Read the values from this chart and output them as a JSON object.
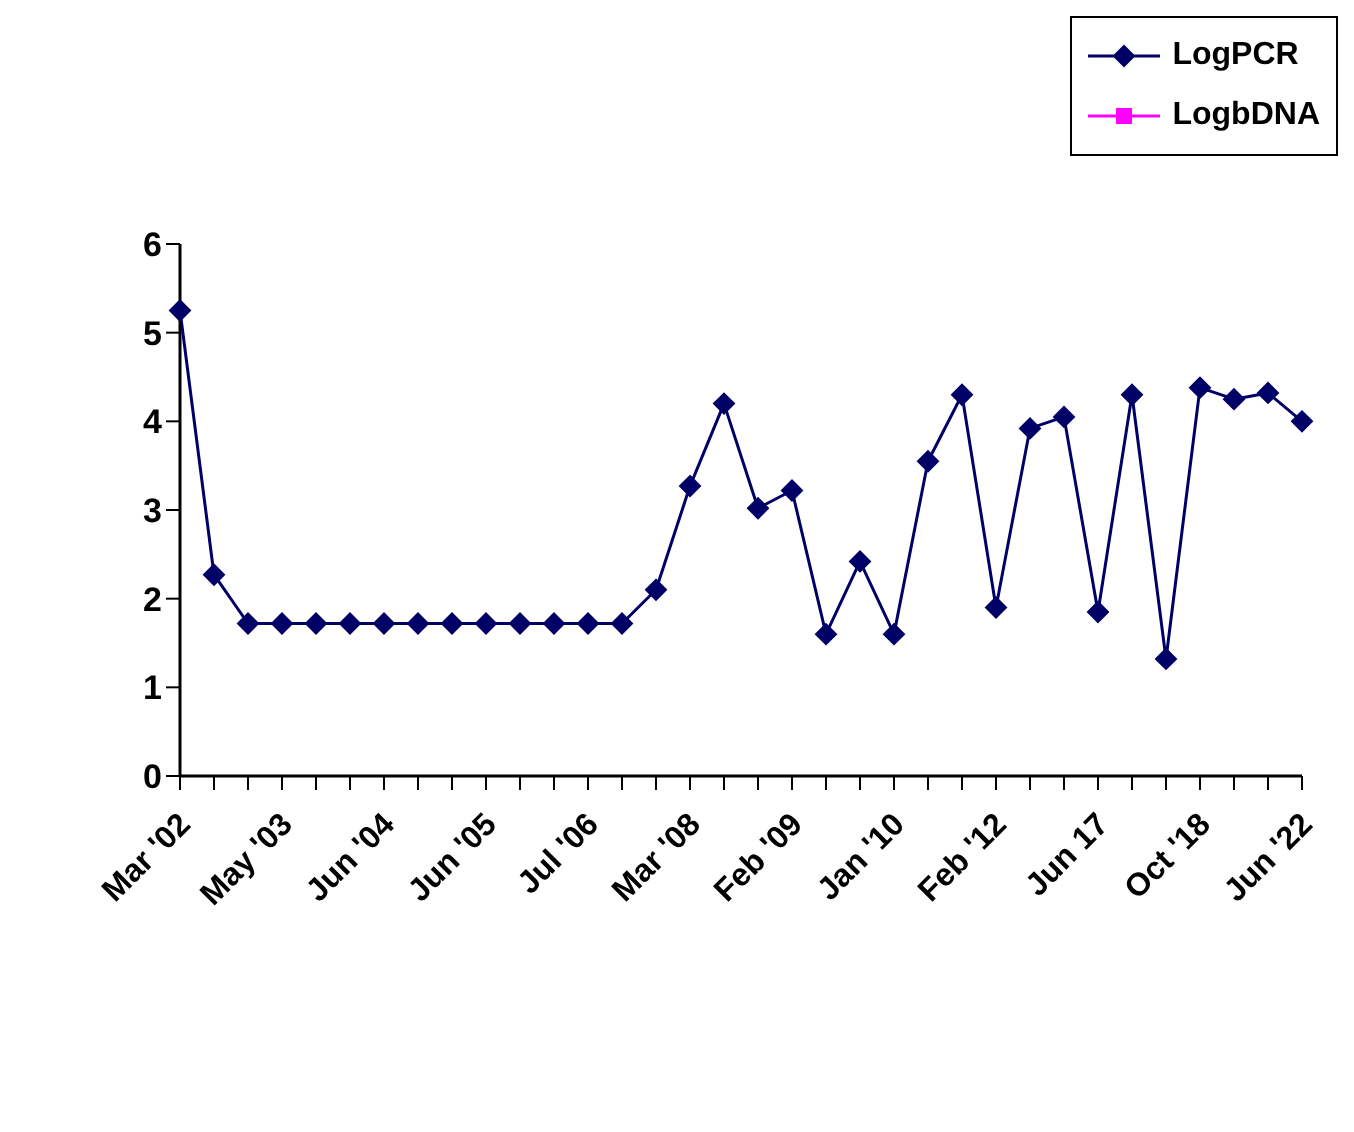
{
  "chart_data": {
    "type": "line",
    "categories": [
      "Mar '02",
      null,
      null,
      "May '03",
      null,
      null,
      "Jun '04",
      null,
      null,
      "Jun '05",
      null,
      null,
      "Jul '06",
      null,
      null,
      "Mar '08",
      null,
      null,
      "Feb '09",
      null,
      null,
      "Jan '10",
      null,
      null,
      "Feb '12",
      null,
      null,
      "Jun 17",
      null,
      null,
      "Oct '18",
      null,
      null,
      "Jun '22"
    ],
    "series": [
      {
        "name": "LogPCR",
        "color": "#000066",
        "marker": "diamond",
        "values": [
          5.25,
          2.27,
          1.72,
          1.72,
          1.72,
          1.72,
          1.72,
          1.72,
          1.72,
          1.72,
          1.72,
          1.72,
          1.72,
          1.72,
          2.1,
          3.27,
          4.2,
          3.02,
          3.22,
          1.6,
          2.42,
          1.6,
          3.55,
          4.3,
          1.9,
          3.92,
          4.05,
          1.85,
          4.3,
          1.32,
          4.38,
          4.25,
          4.32,
          4.0
        ]
      },
      {
        "name": "LogbDNA",
        "color": "#ff00ff",
        "marker": "square",
        "values": [
          null,
          null,
          null,
          null,
          null,
          null,
          null,
          null,
          null,
          null,
          null,
          null,
          null,
          null,
          null,
          null,
          null,
          null,
          null,
          null,
          null,
          null,
          null,
          null,
          null,
          null,
          null,
          null,
          null,
          null,
          null,
          null,
          null,
          null
        ]
      }
    ],
    "ylim": [
      0,
      6
    ],
    "yticks": [
      0,
      1,
      2,
      3,
      4,
      5,
      6
    ],
    "grid": false,
    "legend": "top right"
  }
}
